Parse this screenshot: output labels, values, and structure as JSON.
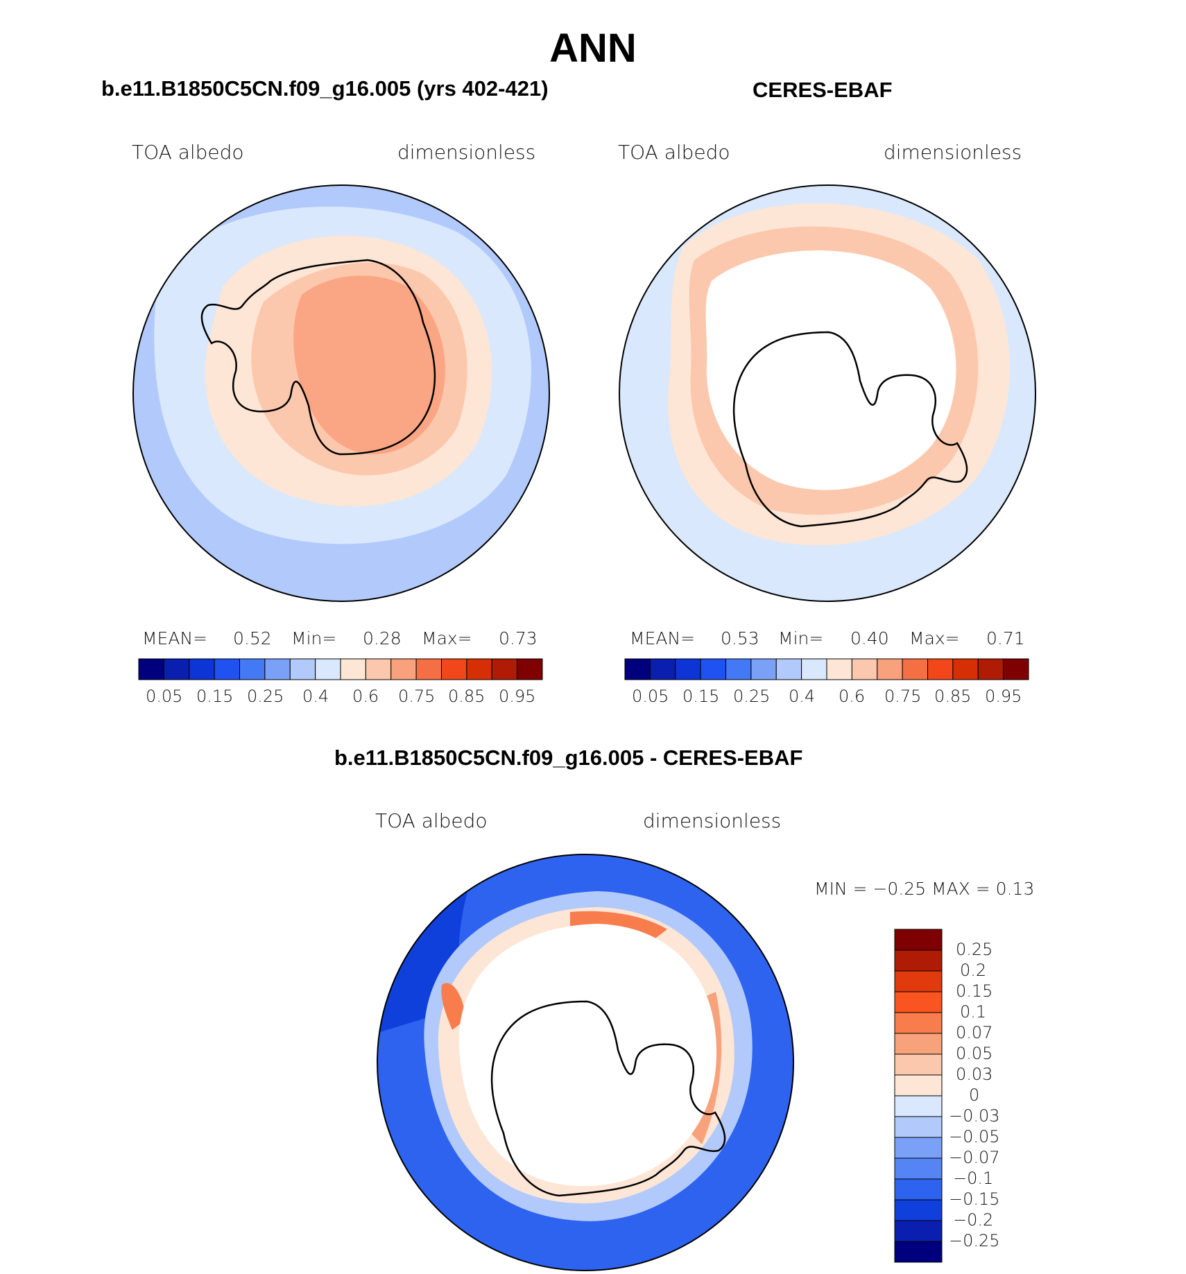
{
  "title": "ANN",
  "panels": [
    {
      "id": "model",
      "heading": "b.e11.B1850C5CN.f09_g16.005 (yrs 402-421)",
      "variable": "TOA albedo",
      "units": "dimensionless",
      "stats": {
        "mean_label": "MEAN=",
        "mean": "0.52",
        "min_label": "Min=",
        "min": "0.28",
        "max_label": "Max=",
        "max": "0.73"
      },
      "colorbar_ticks": [
        "0.05",
        "0.15",
        "0.25",
        "0.4",
        "0.6",
        "0.75",
        "0.85",
        "0.95"
      ]
    },
    {
      "id": "obs",
      "heading": "CERES-EBAF",
      "variable": "TOA albedo",
      "units": "dimensionless",
      "stats": {
        "mean_label": "MEAN=",
        "mean": "0.53",
        "min_label": "Min=",
        "min": "0.40",
        "max_label": "Max=",
        "max": "0.71"
      },
      "colorbar_ticks": [
        "0.05",
        "0.15",
        "0.25",
        "0.4",
        "0.6",
        "0.75",
        "0.85",
        "0.95"
      ]
    }
  ],
  "difference": {
    "heading": "b.e11.B1850C5CN.f09_g16.005 - CERES-EBAF",
    "variable": "TOA albedo",
    "units": "dimensionless",
    "minmax_text": "MIN =   −0.25 MAX =    0.13",
    "colorbar_labels": [
      "0.25",
      "0.2",
      "0.15",
      "0.1",
      "0.07",
      "0.05",
      "0.03",
      "0",
      "−0.03",
      "−0.05",
      "−0.07",
      "−0.1",
      "−0.15",
      "−0.2",
      "−0.25"
    ]
  },
  "palette": [
    "#00007f",
    "#0a1fb0",
    "#0d35d6",
    "#1f52f0",
    "#4479f5",
    "#7ba0f7",
    "#b2cafb",
    "#d9e8fc",
    "#fde6d6",
    "#fcc8ad",
    "#f9a07c",
    "#f46f44",
    "#f2471b",
    "#d62f06",
    "#b01b05",
    "#7f0000"
  ],
  "diff_palette": [
    "#7f0000",
    "#b01b05",
    "#e03a0d",
    "#fa5520",
    "#f87c4c",
    "#f8a27c",
    "#fcc8ad",
    "#fde6d6",
    "#d9e8fc",
    "#b2cafb",
    "#7ba0f7",
    "#5585f5",
    "#2e63f0",
    "#1040dc",
    "#0a1fb0",
    "#00007f"
  ]
}
